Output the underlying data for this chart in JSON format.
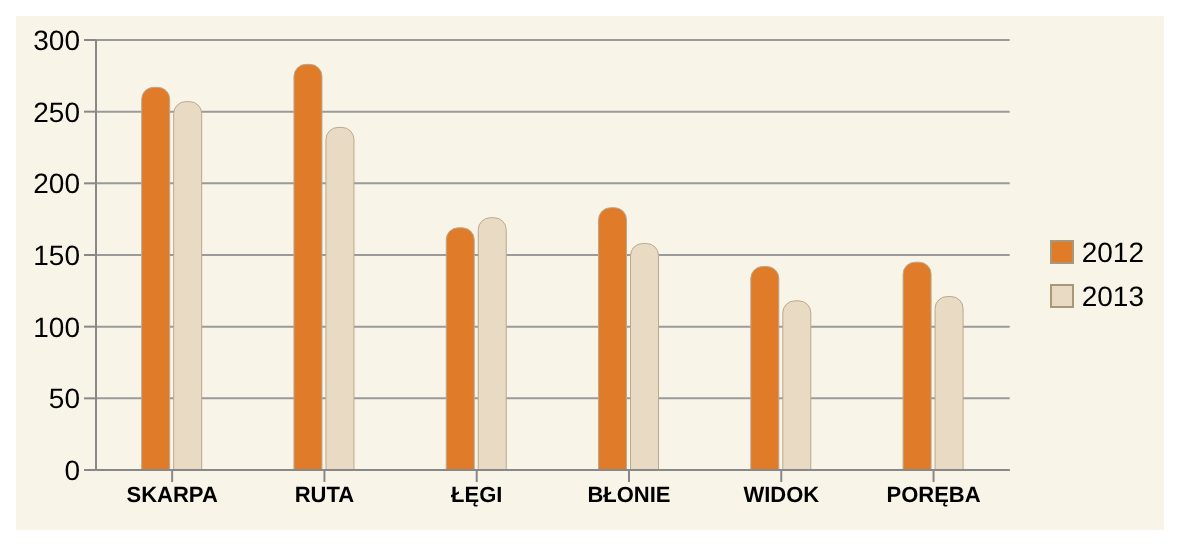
{
  "chart_data": {
    "type": "bar",
    "categories": [
      "SKARPA",
      "RUTA",
      "ŁĘGI",
      "BŁONIE",
      "WIDOK",
      "PORĘBA"
    ],
    "series": [
      {
        "name": "2012",
        "color": "#e07b2a",
        "values": [
          267,
          283,
          169,
          183,
          142,
          145
        ]
      },
      {
        "name": "2013",
        "color": "#e9dac4",
        "values": [
          257,
          239,
          176,
          158,
          118,
          121
        ]
      }
    ],
    "ylim": [
      0,
      300
    ],
    "yticks": [
      0,
      50,
      100,
      150,
      200,
      250,
      300
    ],
    "grid": "y",
    "legend": "right"
  }
}
